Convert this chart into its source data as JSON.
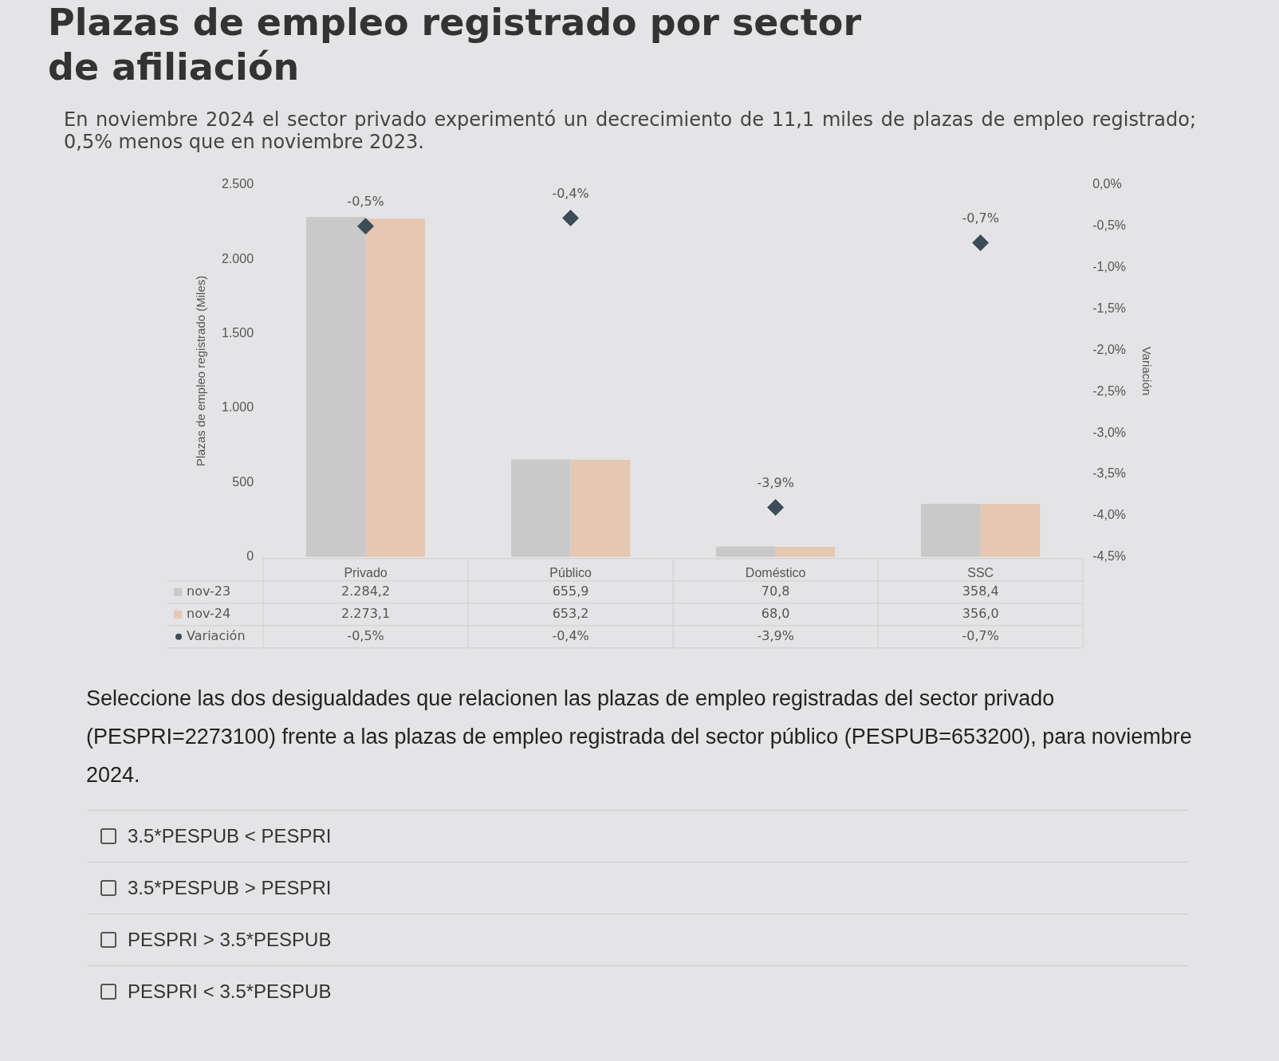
{
  "chart_data": {
    "type": "bar",
    "title": "Plazas de empleo registrado por sector de afiliación",
    "subtitle": "En noviembre 2024 el sector privado experimentó un decrecimiento de 11,1 miles de plazas de empleo registrado; 0,5% menos que en noviembre 2023.",
    "ylabel": "Plazas de empleo registrado (Miles)",
    "y2label": "Variación",
    "categories": [
      "Privado",
      "Público",
      "Doméstico",
      "SSC"
    ],
    "series": [
      {
        "name": "nov-23",
        "color": "#c9c9c9",
        "values": [
          2284.2,
          655.9,
          70.8,
          358.4
        ],
        "value_labels": [
          "2.284,2",
          "655,9",
          "70,8",
          "358,4"
        ]
      },
      {
        "name": "nov-24",
        "color": "#e6c7b2",
        "values": [
          2273.1,
          653.2,
          68.0,
          356.0
        ],
        "value_labels": [
          "2.273,1",
          "653,2",
          "68,0",
          "356,0"
        ]
      },
      {
        "name": "Variación",
        "type": "scatter",
        "axis": "y2",
        "color": "#3d4d58",
        "x": [
          "Privado",
          "Público",
          "Doméstico",
          "SSC"
        ],
        "values": [
          -0.5,
          -0.4,
          -3.9,
          -0.7
        ],
        "value_labels": [
          "-0,5%",
          "-0,4%",
          "-3,9%",
          "-0,7%"
        ]
      }
    ],
    "ylim": [
      0,
      2500
    ],
    "yticks": [
      0,
      {
        "value": 500,
        "label": "500"
      },
      {
        "value": 1000,
        "label": "1.000"
      },
      {
        "value": 1500,
        "label": "1.500"
      },
      {
        "value": 2000,
        "label": "2.000"
      },
      {
        "value": 2500,
        "label": "2.500"
      }
    ],
    "y2lim": [
      -4.5,
      0
    ],
    "y2ticks": [
      {
        "value": -4.5,
        "label": "-4,5%"
      },
      {
        "value": -4,
        "label": "-4,0%"
      },
      {
        "value": -3.5,
        "label": "-3,5%"
      },
      {
        "value": -3,
        "label": "-3,0%"
      },
      {
        "value": -2.5,
        "label": "-2,5%"
      },
      {
        "value": -2,
        "label": "-2,0%"
      },
      {
        "value": -1.5,
        "label": "-1,5%"
      },
      {
        "value": -1,
        "label": "-1,0%"
      },
      {
        "value": -0.5,
        "label": "-0,5%"
      },
      {
        "value": 0,
        "label": "0,0%"
      }
    ],
    "marker": "diamond",
    "grid": false,
    "legend": "bottom",
    "data_labels": true,
    "annotations": [
      "Seleccione las dos desigualdades que relacionen las plazas de empleo registradas del sector privado (PESPRI=2273100) frente a las plazas de empleo registrada del sector público (PESPUB=653200), para noviembre 2024.",
      "3.5*PESPUB < PESPRI",
      "3.5*PESPUB > PESPRI",
      "PESPRI > 3.5*PESPUB",
      "PESPRI < 3.5*PESPUB"
    ]
  }
}
